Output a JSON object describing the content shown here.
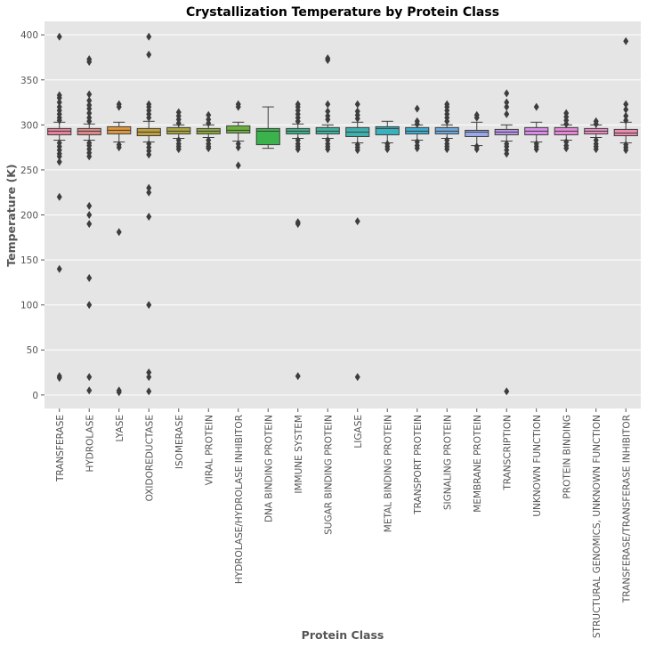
{
  "chart_data": {
    "type": "box",
    "title": "Crystallization Temperature by Protein Class",
    "xlabel": "Protein Class",
    "ylabel": "Temperature (K)",
    "ylim": [
      -15,
      415
    ],
    "yticks": [
      0,
      50,
      100,
      150,
      200,
      250,
      300,
      350,
      400
    ],
    "grid": true,
    "background": "#e5e5e5",
    "categories": [
      "TRANSFERASE",
      "HYDROLASE",
      "LYASE",
      "OXIDOREDUCTASE",
      "ISOMERASE",
      "VIRAL PROTEIN",
      "HYDROLASE/HYDROLASE INHIBITOR",
      "DNA BINDING PROTEIN",
      "IMMUNE SYSTEM",
      "SUGAR BINDING PROTEIN",
      "LIGASE",
      "METAL BINDING PROTEIN",
      "TRANSPORT PROTEIN",
      "SIGNALING PROTEIN",
      "MEMBRANE PROTEIN",
      "TRANSCRIPTION",
      "UNKNOWN FUNCTION",
      "PROTEIN BINDING",
      "STRUCTURAL GENOMICS, UNKNOWN FUNCTION",
      "TRANSFERASE/TRANSFERASE INHIBITOR"
    ],
    "colors": [
      "#e8829a",
      "#dd8a86",
      "#e0963a",
      "#bf9e3c",
      "#a9a43c",
      "#8da73c",
      "#6aae3c",
      "#3cb24d",
      "#3db08a",
      "#3db29e",
      "#3db0ae",
      "#3ab1be",
      "#3cadd0",
      "#6fa8dc",
      "#98a8ea",
      "#ba96e8",
      "#d88de6",
      "#e48ad8",
      "#e88dc0",
      "#ea8aae"
    ],
    "boxes": [
      {
        "q1": 289,
        "median": 293,
        "q3": 296,
        "whislo": 283,
        "whishi": 303,
        "fliers": [
          398,
          333,
          330,
          325,
          320,
          316,
          312,
          308,
          305,
          280,
          276,
          272,
          268,
          265,
          259,
          220,
          140,
          21,
          19
        ]
      },
      {
        "q1": 289,
        "median": 293,
        "q3": 296,
        "whislo": 283,
        "whishi": 301,
        "fliers": [
          373,
          370,
          334,
          327,
          322,
          318,
          313,
          308,
          304,
          280,
          277,
          273,
          269,
          265,
          210,
          200,
          190,
          130,
          100,
          20,
          5
        ]
      },
      {
        "q1": 290,
        "median": 294,
        "q3": 298,
        "whislo": 281,
        "whishi": 303,
        "fliers": [
          323,
          320,
          278,
          275,
          181,
          5,
          3
        ]
      },
      {
        "q1": 288,
        "median": 292,
        "q3": 296,
        "whislo": 281,
        "whishi": 304,
        "fliers": [
          398,
          378,
          323,
          320,
          316,
          312,
          308,
          279,
          275,
          271,
          267,
          230,
          225,
          198,
          100,
          25,
          20,
          4
        ]
      },
      {
        "q1": 290,
        "median": 293,
        "q3": 297,
        "whislo": 285,
        "whishi": 300,
        "fliers": [
          314,
          310,
          306,
          302,
          283,
          279,
          276,
          273
        ]
      },
      {
        "q1": 290,
        "median": 293,
        "q3": 296,
        "whislo": 286,
        "whishi": 300,
        "fliers": [
          311,
          306,
          302,
          283,
          279,
          276,
          274
        ]
      },
      {
        "q1": 291,
        "median": 294,
        "q3": 299,
        "whislo": 282,
        "whishi": 303,
        "fliers": [
          323,
          320,
          279,
          275,
          255
        ]
      },
      {
        "q1": 278,
        "median": 293,
        "q3": 296,
        "whislo": 274,
        "whishi": 320,
        "fliers": []
      },
      {
        "q1": 290,
        "median": 293,
        "q3": 296,
        "whislo": 285,
        "whishi": 301,
        "fliers": [
          323,
          320,
          316,
          312,
          308,
          304,
          283,
          279,
          276,
          273,
          192,
          190,
          21
        ]
      },
      {
        "q1": 290,
        "median": 293,
        "q3": 297,
        "whislo": 285,
        "whishi": 300,
        "fliers": [
          374,
          372,
          323,
          315,
          310,
          306,
          283,
          279,
          276,
          273
        ]
      },
      {
        "q1": 287,
        "median": 292,
        "q3": 297,
        "whislo": 280,
        "whishi": 303,
        "fliers": [
          323,
          315,
          311,
          307,
          278,
          275,
          272,
          193,
          20
        ]
      },
      {
        "q1": 289,
        "median": 296,
        "q3": 298,
        "whislo": 280,
        "whishi": 304,
        "fliers": [
          279,
          276,
          273
        ]
      },
      {
        "q1": 290,
        "median": 293,
        "q3": 297,
        "whislo": 283,
        "whishi": 300,
        "fliers": [
          318,
          304,
          301,
          281,
          277,
          274
        ]
      },
      {
        "q1": 290,
        "median": 293,
        "q3": 297,
        "whislo": 285,
        "whishi": 300,
        "fliers": [
          323,
          320,
          316,
          312,
          308,
          304,
          283,
          279,
          276,
          273
        ]
      },
      {
        "q1": 287,
        "median": 292,
        "q3": 294,
        "whislo": 277,
        "whishi": 303,
        "fliers": [
          311,
          308,
          276,
          273
        ]
      },
      {
        "q1": 289,
        "median": 292,
        "q3": 295,
        "whislo": 282,
        "whishi": 300,
        "fliers": [
          335,
          325,
          320,
          312,
          279,
          276,
          272,
          268,
          4
        ]
      },
      {
        "q1": 289,
        "median": 293,
        "q3": 297,
        "whislo": 281,
        "whishi": 303,
        "fliers": [
          320,
          279,
          276,
          273
        ]
      },
      {
        "q1": 289,
        "median": 293,
        "q3": 297,
        "whislo": 283,
        "whishi": 300,
        "fliers": [
          313,
          309,
          305,
          301,
          281,
          277,
          274
        ]
      },
      {
        "q1": 290,
        "median": 293,
        "q3": 296,
        "whislo": 286,
        "whishi": 300,
        "fliers": [
          304,
          301,
          283,
          279,
          276,
          273
        ]
      },
      {
        "q1": 288,
        "median": 291,
        "q3": 295,
        "whislo": 280,
        "whishi": 303,
        "fliers": [
          393,
          323,
          317,
          310,
          305,
          278,
          275,
          272
        ]
      }
    ]
  }
}
